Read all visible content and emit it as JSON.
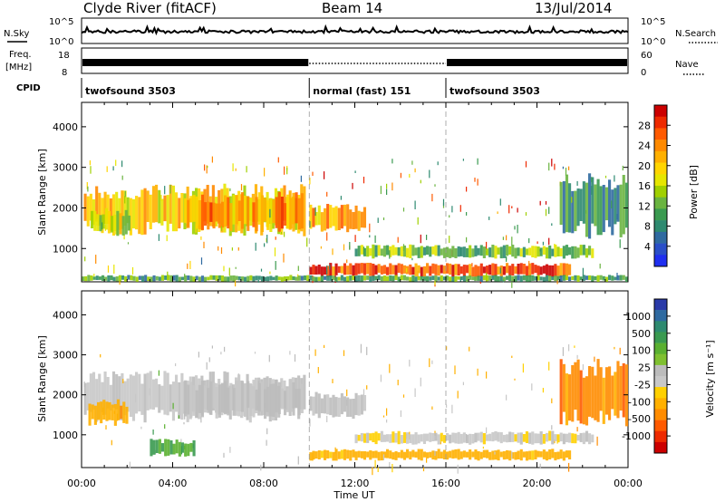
{
  "header": {
    "station": "Clyde River (fitACF)",
    "beam": "Beam 14",
    "date": "13/Jul/2014"
  },
  "strip_panels": {
    "noise": {
      "left_label": "N.Sky",
      "left_ticks": [
        "10^5",
        "10^0"
      ],
      "right_label": "N.Search",
      "right_ticks": [
        "10^5",
        "10^0"
      ],
      "right_legend_style": "dotted"
    },
    "freq": {
      "left_label_line1": "Freq.",
      "left_label_line2": "[MHz]",
      "left_ticks": [
        "18",
        "8"
      ],
      "right_label": "Nave",
      "right_ticks": [
        "60",
        "0"
      ],
      "right_legend_style": "dotted"
    },
    "cpid": {
      "label": "CPID",
      "segments": [
        {
          "name": "twofsound 3503",
          "start": "00:00",
          "end": "10:00"
        },
        {
          "name": "normal (fast) 151",
          "start": "10:00",
          "end": "16:00"
        },
        {
          "name": "twofsound 3503",
          "start": "16:00",
          "end": "00:00"
        }
      ]
    }
  },
  "x_axis": {
    "label": "Time UT",
    "ticks": [
      "00:00",
      "04:00",
      "08:00",
      "12:00",
      "16:00",
      "20:00",
      "00:00"
    ]
  },
  "colorbars": {
    "power": {
      "label": "Power [dB]",
      "ticks": [
        "28",
        "24",
        "20",
        "16",
        "12",
        "8",
        "4"
      ],
      "colors": [
        "#cc0000",
        "#ee2a00",
        "#ff5a00",
        "#ff8a00",
        "#ffb000",
        "#ffd500",
        "#e6e600",
        "#a0d000",
        "#6ab440",
        "#3a9a50",
        "#2e8a70",
        "#2f6aa0",
        "#2a4fc8",
        "#1f2ff0"
      ]
    },
    "velocity": {
      "label": "Velocity [m s⁻¹]",
      "ticks": [
        "1000",
        "500",
        "100",
        "25",
        "-25",
        "-100",
        "-500",
        "-1000"
      ],
      "colors": [
        "#2a3aa8",
        "#2f6aa0",
        "#2e8a70",
        "#3a9a50",
        "#5ab030",
        "#7fc030",
        "#bcbcbc",
        "#c8c8c8",
        "#ffd000",
        "#ffb000",
        "#ff8c00",
        "#ff5a00",
        "#ee2a00",
        "#cc0000"
      ]
    }
  },
  "chart_data": [
    {
      "type": "heatmap",
      "title": "Beam 14",
      "ylabel": "Slant Range [km]",
      "xlabel": "Time UT",
      "x_range_hours": [
        0,
        24
      ],
      "ylim": [
        180,
        4600
      ],
      "yticks": [
        1000,
        2000,
        3000,
        4000
      ],
      "colorbar": "Power [dB]",
      "scatter_regions": [
        {
          "t0": 0.1,
          "t1": 9.9,
          "r0": 1300,
          "r1": 2600,
          "level": 18
        },
        {
          "t0": 4.5,
          "t1": 9.8,
          "r0": 1400,
          "r1": 2400,
          "level": 22
        },
        {
          "t0": 0.4,
          "t1": 2.2,
          "r0": 1300,
          "r1": 2000,
          "level": 16
        },
        {
          "t0": 10.0,
          "t1": 12.5,
          "r0": 1400,
          "r1": 2100,
          "level": 20
        },
        {
          "t0": 10.0,
          "t1": 21.5,
          "r0": 300,
          "r1": 650,
          "level": 26
        },
        {
          "t0": 12.0,
          "t1": 22.5,
          "r0": 750,
          "r1": 1100,
          "level": 12
        },
        {
          "t0": 21.0,
          "t1": 24.0,
          "r0": 1200,
          "r1": 2900,
          "level": 8
        },
        {
          "t0": 0.0,
          "t1": 24.0,
          "r0": 180,
          "r1": 350,
          "level": 10
        }
      ]
    },
    {
      "type": "heatmap",
      "title": "Beam 14",
      "ylabel": "Slant Range [km]",
      "xlabel": "Time UT",
      "x_range_hours": [
        0,
        24
      ],
      "ylim": [
        180,
        4600
      ],
      "yticks": [
        1000,
        2000,
        3000,
        4000
      ],
      "colorbar": "Velocity [m s⁻¹]",
      "scatter_regions": [
        {
          "t0": 0.1,
          "t1": 9.9,
          "r0": 1300,
          "r1": 2600,
          "level": 0
        },
        {
          "t0": 4.5,
          "t1": 9.8,
          "r0": 1400,
          "r1": 2400,
          "level": 0
        },
        {
          "t0": 0.3,
          "t1": 2.0,
          "r0": 1200,
          "r1": 1900,
          "level": -150
        },
        {
          "t0": 10.0,
          "t1": 12.5,
          "r0": 1400,
          "r1": 2100,
          "level": 0
        },
        {
          "t0": 10.0,
          "t1": 21.5,
          "r0": 350,
          "r1": 650,
          "level": -120
        },
        {
          "t0": 12.0,
          "t1": 22.5,
          "r0": 750,
          "r1": 1100,
          "level": -20
        },
        {
          "t0": 21.0,
          "t1": 24.0,
          "r0": 1200,
          "r1": 2900,
          "level": -300
        },
        {
          "t0": 3.0,
          "t1": 5.0,
          "r0": 450,
          "r1": 900,
          "level": 200
        }
      ]
    }
  ]
}
